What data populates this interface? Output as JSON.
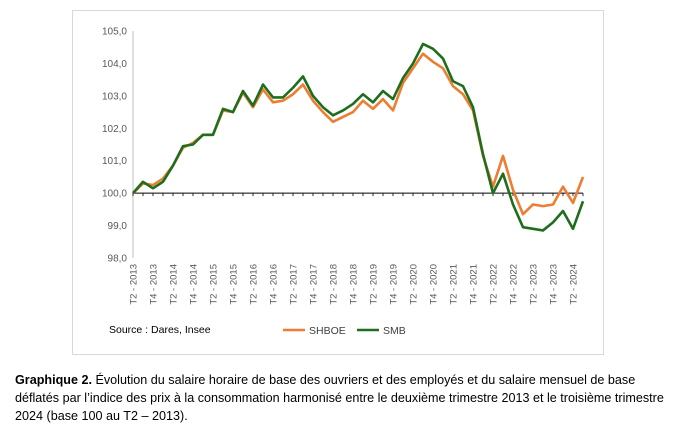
{
  "chart_data": {
    "type": "line",
    "x": [
      "T2 - 2013",
      "T3 - 2013",
      "T4 - 2013",
      "T1 - 2014",
      "T2 - 2014",
      "T3 - 2014",
      "T4 - 2014",
      "T1 - 2015",
      "T2 - 2015",
      "T3 - 2015",
      "T4 - 2015",
      "T1 - 2016",
      "T2 - 2016",
      "T3 - 2016",
      "T4 - 2016",
      "T1 - 2017",
      "T2 - 2017",
      "T3 - 2017",
      "T4 - 2017",
      "T1 - 2018",
      "T2 - 2018",
      "T3 - 2018",
      "T4 - 2018",
      "T1 - 2019",
      "T2 - 2019",
      "T3 - 2019",
      "T4 - 2019",
      "T1 - 2020",
      "T2 - 2020",
      "T3 - 2020",
      "T4 - 2020",
      "T1 - 2021",
      "T2 - 2021",
      "T3 - 2021",
      "T4 - 2021",
      "T1 - 2022",
      "T2 - 2022",
      "T3 - 2022",
      "T4 - 2022",
      "T1 - 2023",
      "T2 - 2023",
      "T3 - 2023",
      "T4 - 2023",
      "T1 - 2024",
      "T2 - 2024",
      "T3 - 2024"
    ],
    "x_tick_labels": [
      "T2 - 2013",
      "T4 - 2013",
      "T2 - 2014",
      "T4 - 2014",
      "T2 - 2015",
      "T4 - 2015",
      "T2 - 2016",
      "T4 - 2016",
      "T2 - 2017",
      "T4 - 2017",
      "T2 - 2018",
      "T4 - 2018",
      "T2 - 2019",
      "T4 - 2019",
      "T2 - 2020",
      "T4 - 2020",
      "T2 - 2021",
      "T4 - 2021",
      "T2 - 2022",
      "T4 - 2022",
      "T2 - 2023",
      "T4 - 2023",
      "T2 - 2024"
    ],
    "y_tick_labels": [
      "98,0",
      "99,0",
      "100,0",
      "101,0",
      "102,0",
      "103,0",
      "104,0",
      "105,0"
    ],
    "ylim": [
      98,
      105
    ],
    "grid": false,
    "reference_line": 100,
    "series": [
      {
        "name": "SHBOE",
        "color": "#ed7d31",
        "values": [
          100.0,
          100.3,
          100.25,
          100.45,
          100.85,
          101.4,
          101.55,
          101.8,
          101.8,
          102.55,
          102.5,
          103.1,
          102.65,
          103.2,
          102.8,
          102.85,
          103.05,
          103.35,
          102.85,
          102.5,
          102.2,
          102.35,
          102.5,
          102.85,
          102.6,
          102.9,
          102.55,
          103.4,
          103.85,
          104.3,
          104.05,
          103.85,
          103.3,
          103.05,
          102.55,
          101.15,
          100.2,
          101.15,
          100.1,
          99.35,
          99.65,
          99.6,
          99.65,
          100.2,
          99.7,
          100.5
        ]
      },
      {
        "name": "SMB",
        "color": "#1e6e1e",
        "values": [
          100.0,
          100.35,
          100.15,
          100.35,
          100.85,
          101.45,
          101.5,
          101.8,
          101.8,
          102.6,
          102.5,
          103.15,
          102.7,
          103.35,
          102.95,
          102.95,
          103.25,
          103.6,
          103.0,
          102.65,
          102.4,
          102.55,
          102.75,
          103.05,
          102.8,
          103.15,
          102.9,
          103.55,
          104.0,
          104.6,
          104.45,
          104.15,
          103.45,
          103.3,
          102.65,
          101.2,
          100.0,
          100.6,
          99.65,
          98.95,
          98.9,
          98.85,
          99.1,
          99.45,
          98.9,
          99.75
        ]
      }
    ],
    "legend_position": "bottom",
    "source": "Source : Dares, Insee"
  },
  "caption": {
    "bold": "Graphique 2.",
    "text": " Évolution du salaire horaire de base des ouvriers et des employés et du salaire mensuel de base déflatés par l’indice des prix à la consommation harmonisé entre le deuxième trimestre 2013 et le troisième trimestre 2024 (base 100 au T2 – 2013)."
  }
}
